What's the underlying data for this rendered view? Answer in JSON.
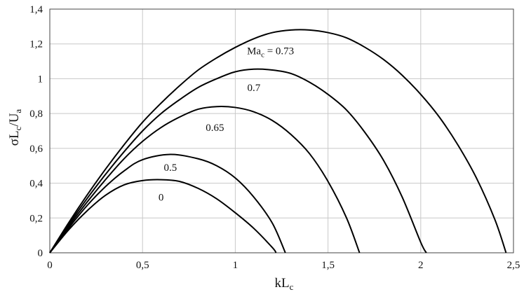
{
  "chart_data": {
    "type": "line",
    "title": "",
    "xlabel": {
      "main": "kL",
      "sub": "c"
    },
    "ylabel": {
      "sigma": "σL",
      "sub1": "c",
      "mid": "/U",
      "sub2": "a"
    },
    "xlim": [
      0,
      2.5
    ],
    "ylim": [
      0,
      1.4
    ],
    "grid": true,
    "x_ticks": [
      {
        "value": 0,
        "label": "0"
      },
      {
        "value": 0.5,
        "label": "0,5"
      },
      {
        "value": 1,
        "label": "1"
      },
      {
        "value": 1.5,
        "label": "1,5"
      },
      {
        "value": 2,
        "label": "2"
      },
      {
        "value": 2.5,
        "label": "2,5"
      }
    ],
    "y_ticks": [
      {
        "value": 0,
        "label": "0"
      },
      {
        "value": 0.2,
        "label": "0,2"
      },
      {
        "value": 0.4,
        "label": "0,4"
      },
      {
        "value": 0.6,
        "label": "0,6"
      },
      {
        "value": 0.8,
        "label": "0,8"
      },
      {
        "value": 1,
        "label": "1"
      },
      {
        "value": 1.2,
        "label": "1,2"
      },
      {
        "value": 1.4,
        "label": "1,4"
      }
    ],
    "series": [
      {
        "label": {
          "text": "0",
          "x": 0.6,
          "y": 0.3
        },
        "x": [
          0,
          0.1,
          0.2,
          0.3,
          0.4,
          0.5,
          0.6,
          0.7,
          0.8,
          0.9,
          1.0,
          1.1,
          1.2,
          1.22
        ],
        "y": [
          0,
          0.13,
          0.24,
          0.33,
          0.39,
          0.415,
          0.42,
          0.41,
          0.37,
          0.31,
          0.23,
          0.14,
          0.03,
          0
        ]
      },
      {
        "label": {
          "text": "0.5",
          "x": 0.65,
          "y": 0.47
        },
        "x": [
          0,
          0.1,
          0.2,
          0.3,
          0.4,
          0.5,
          0.65,
          0.8,
          0.9,
          1.0,
          1.1,
          1.2,
          1.27
        ],
        "y": [
          0,
          0.14,
          0.27,
          0.38,
          0.47,
          0.535,
          0.565,
          0.54,
          0.5,
          0.43,
          0.32,
          0.17,
          0
        ]
      },
      {
        "label": {
          "text": "0.65",
          "x": 0.89,
          "y": 0.7
        },
        "x": [
          0,
          0.1,
          0.2,
          0.3,
          0.4,
          0.5,
          0.6,
          0.7,
          0.8,
          0.9,
          1.0,
          1.1,
          1.2,
          1.3,
          1.4,
          1.5,
          1.6,
          1.67
        ],
        "y": [
          0,
          0.15,
          0.29,
          0.42,
          0.54,
          0.64,
          0.72,
          0.78,
          0.825,
          0.84,
          0.835,
          0.81,
          0.76,
          0.68,
          0.57,
          0.41,
          0.2,
          0
        ]
      },
      {
        "label": {
          "text": "0.7",
          "x": 1.1,
          "y": 0.93
        },
        "x": [
          0,
          0.1,
          0.2,
          0.3,
          0.4,
          0.5,
          0.6,
          0.7,
          0.8,
          0.9,
          1.0,
          1.1,
          1.2,
          1.3,
          1.4,
          1.5,
          1.6,
          1.7,
          1.8,
          1.9,
          2.0,
          2.03
        ],
        "y": [
          0,
          0.16,
          0.31,
          0.45,
          0.58,
          0.7,
          0.8,
          0.88,
          0.95,
          1.0,
          1.04,
          1.055,
          1.05,
          1.03,
          0.98,
          0.91,
          0.82,
          0.69,
          0.53,
          0.32,
          0.06,
          0
        ]
      },
      {
        "label": {
          "text": "Ma",
          "sub": "c",
          "rest": " = 0.73",
          "x": 1.19,
          "y": 1.14
        },
        "x": [
          0,
          0.1,
          0.2,
          0.3,
          0.4,
          0.5,
          0.6,
          0.7,
          0.8,
          0.9,
          1.0,
          1.1,
          1.2,
          1.3,
          1.4,
          1.5,
          1.6,
          1.7,
          1.8,
          1.9,
          2.0,
          2.1,
          2.2,
          2.3,
          2.4,
          2.46
        ],
        "y": [
          0,
          0.17,
          0.33,
          0.48,
          0.62,
          0.75,
          0.86,
          0.96,
          1.05,
          1.12,
          1.18,
          1.23,
          1.265,
          1.28,
          1.28,
          1.265,
          1.235,
          1.18,
          1.11,
          1.02,
          0.91,
          0.78,
          0.62,
          0.43,
          0.19,
          0
        ]
      }
    ]
  }
}
